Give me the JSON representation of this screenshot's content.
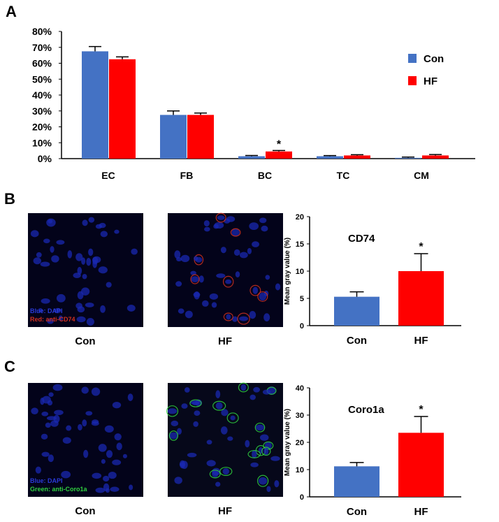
{
  "panel_labels": [
    "A",
    "B",
    "C"
  ],
  "colors": {
    "con": "#4472C4",
    "hf": "#FF0000"
  },
  "chart_data": [
    {
      "type": "bar",
      "panel": "A",
      "categories": [
        "EC",
        "FB",
        "BC",
        "TC",
        "CM"
      ],
      "series": [
        {
          "name": "Con",
          "values": [
            67.5,
            27.5,
            1.5,
            1.5,
            0.5
          ],
          "errors": [
            3,
            2.5,
            0.5,
            0.4,
            0.5
          ]
        },
        {
          "name": "HF",
          "values": [
            62.5,
            27.5,
            4.5,
            2,
            2
          ],
          "errors": [
            1.5,
            1.2,
            0.6,
            0.5,
            0.6
          ]
        }
      ],
      "significance": [
        {
          "category": "BC",
          "series": "HF",
          "mark": "*"
        }
      ],
      "ylim": [
        0,
        80
      ],
      "yticks": [
        "0%",
        "10%",
        "20%",
        "30%",
        "40%",
        "50%",
        "60%",
        "70%",
        "80%"
      ],
      "legend": "right"
    },
    {
      "type": "bar",
      "panel": "B",
      "title": "CD74",
      "ylabel": "Mean gray value (%)",
      "categories": [
        "Con",
        "HF"
      ],
      "values": [
        5.3,
        10
      ],
      "errors": [
        0.9,
        3.2
      ],
      "significance": [
        {
          "category": "HF",
          "mark": "*"
        }
      ],
      "ylim": [
        0,
        20
      ],
      "yticks": [
        "0",
        "5",
        "10",
        "15",
        "20"
      ]
    },
    {
      "type": "bar",
      "panel": "C",
      "title": "Coro1a",
      "ylabel": "Mean gray value (%)",
      "categories": [
        "Con",
        "HF"
      ],
      "values": [
        11.2,
        23.5
      ],
      "errors": [
        1.4,
        6
      ],
      "significance": [
        {
          "category": "HF",
          "mark": "*"
        }
      ],
      "ylim": [
        0,
        40
      ],
      "yticks": [
        "0",
        "10",
        "20",
        "30",
        "40"
      ]
    }
  ],
  "images": {
    "B": {
      "captions": [
        "Con",
        "HF"
      ],
      "legend_lines": [
        "Blue: DAPI",
        "Red: anti-CD74"
      ],
      "stain": "#d03020"
    },
    "C": {
      "captions": [
        "Con",
        "HF"
      ],
      "legend_lines": [
        "Blue: DAPI",
        "Green: anti-Coro1a"
      ],
      "stain": "#30d040"
    }
  }
}
